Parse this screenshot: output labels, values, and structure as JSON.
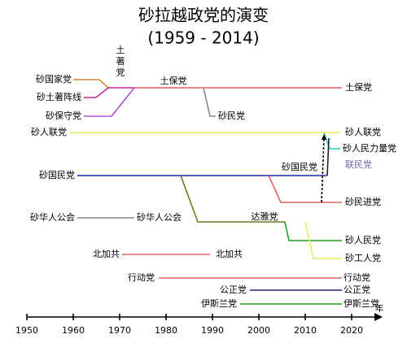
{
  "header": {
    "title": "砂拉越政党的演变",
    "subtitle": "(1959 - 2014)"
  },
  "labels": {
    "bumiputera": "土\n著\n党",
    "pbb_top": "土保党",
    "pbb_end": "土保党",
    "sarawak_national_party_early": "砂国家党",
    "pesaka": "砂土著阵线",
    "panas": "砂保守党",
    "snap_split": "砂民党",
    "supp_start": "砂人联党",
    "supp_end": "砂人联党",
    "uppp": "砂人民力量党",
    "upp": "联民党",
    "snap_start": "砂国民党",
    "snap_mid": "砂国民党",
    "spdp": "砂民进党",
    "sca_start": "砂华人公会",
    "sca_end": "砂华人公会",
    "pbds": "达雅党",
    "prs": "砂人民党",
    "swp": "砂工人党",
    "nkcp_start": "北加共",
    "nkcp_end": "北加共",
    "dap_start": "行动党",
    "dap_end": "行动党",
    "pkr_start": "公正党",
    "pkr_end": "公正党",
    "pas_start": "伊斯兰党",
    "pas_end": "伊斯兰党"
  },
  "axis": {
    "unit": "年",
    "ticks": [
      1950,
      1960,
      1970,
      1980,
      1990,
      2000,
      2010,
      2020
    ]
  }
}
